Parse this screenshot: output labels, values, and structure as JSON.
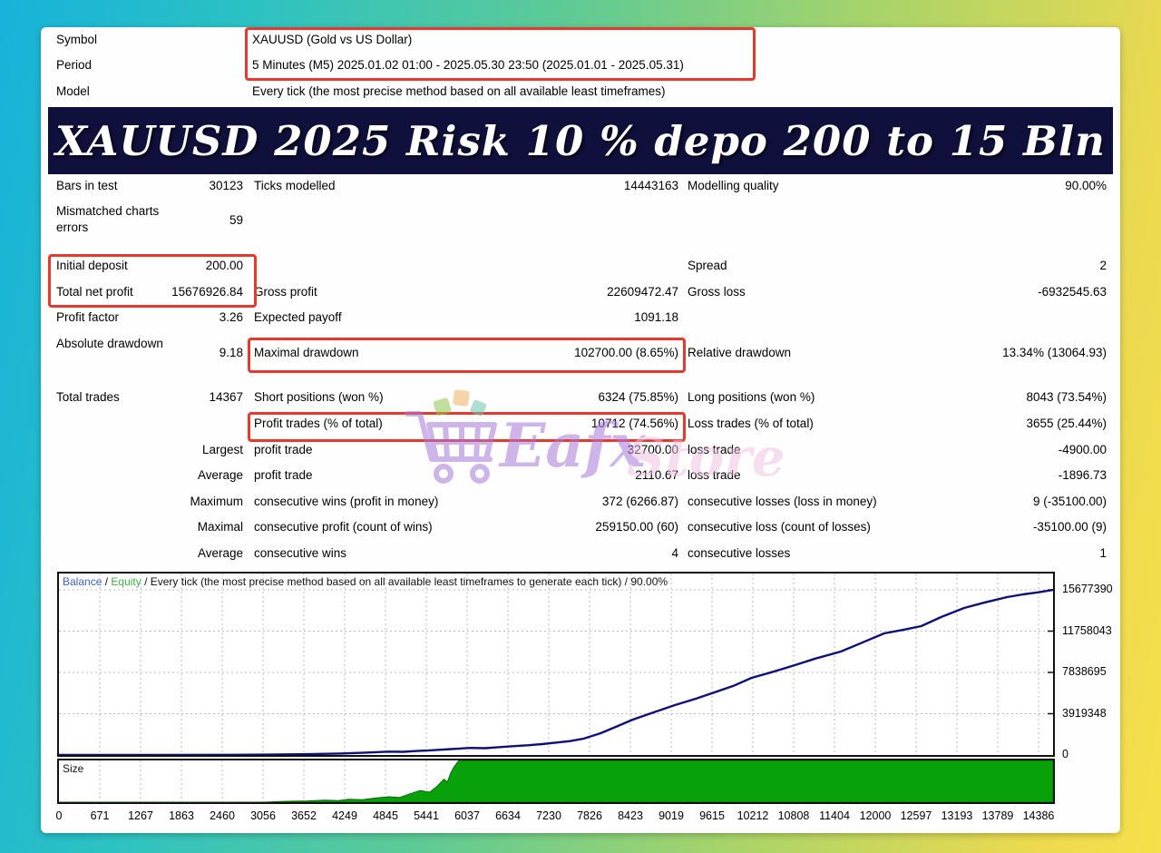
{
  "header": {
    "rows": [
      {
        "label": "Symbol",
        "value": "XAUUSD (Gold vs US Dollar)"
      },
      {
        "label": "Period",
        "value": "5 Minutes (M5) 2025.01.02 01:00 - 2025.05.30 23:50 (2025.01.01 - 2025.05.31)"
      },
      {
        "label": "Model",
        "value": "Every tick (the most precise method based on all available least timeframes)"
      }
    ]
  },
  "banner": {
    "title": "XAUUSD 2025 Risk 10 % depo 200 to 15 Bln",
    "bg": "#10103c",
    "fg": "#ffffff"
  },
  "stats": {
    "rows": [
      {
        "c1l": "Bars in test",
        "c1v": "30123",
        "c2l": "Ticks modelled",
        "c2v": "14443163",
        "c3l": "Modelling quality",
        "c3v": "90.00%"
      },
      {
        "c1l": "Mismatched charts errors",
        "c1v": "59"
      },
      {
        "c1l": "Initial deposit",
        "c1v": "200.00",
        "c3l": "Spread",
        "c3v": "2"
      },
      {
        "c1l": "Total net profit",
        "c1v": "15676926.84",
        "c2l": "Gross profit",
        "c2v": "22609472.47",
        "c3l": "Gross loss",
        "c3v": "-6932545.63"
      },
      {
        "c1l": "Profit factor",
        "c1v": "3.26",
        "c2l": "Expected payoff",
        "c2v": "1091.18"
      },
      {
        "c1l": "Absolute drawdown",
        "c1v": "9.18",
        "c2l": "Maximal drawdown",
        "c2v": "102700.00 (8.65%)",
        "c3l": "Relative drawdown",
        "c3v": "13.34% (13064.93)"
      },
      {
        "c1l": "Total trades",
        "c1v": "14367",
        "c2l": "Short positions (won %)",
        "c2v": "6324 (75.85%)",
        "c3l": "Long positions (won %)",
        "c3v": "8043 (73.54%)"
      },
      {
        "c2l": "Profit trades (% of total)",
        "c2v": "10712 (74.56%)",
        "c3l": "Loss trades (% of total)",
        "c3v": "3655 (25.44%)"
      },
      {
        "c1v": "Largest",
        "c2l": "profit trade",
        "c2v": "32700.00",
        "c3l": "loss trade",
        "c3v": "-4900.00"
      },
      {
        "c1v": "Average",
        "c2l": "profit trade",
        "c2v": "2110.67",
        "c3l": "loss trade",
        "c3v": "-1896.73"
      },
      {
        "c1v": "Maximum",
        "c2l": "consecutive wins (profit in money)",
        "c2v": "372 (6266.87)",
        "c3l": "consecutive losses (loss in money)",
        "c3v": "9 (-35100.00)"
      },
      {
        "c1v": "Maximal",
        "c2l": "consecutive profit (count of wins)",
        "c2v": "259150.00 (60)",
        "c3l": "consecutive loss (count of losses)",
        "c3v": "-35100.00 (9)"
      },
      {
        "c1v": "Average",
        "c2l": "consecutive wins",
        "c2v": "4",
        "c3l": "consecutive losses",
        "c3v": "1"
      }
    ]
  },
  "watermark": {
    "brand_first": "Eafx",
    "brand_second": "Store",
    "cart_color": "#a678d8",
    "first_color": "#a678d8",
    "second_color": "#f0bfe2"
  },
  "chart_data": [
    {
      "type": "line",
      "title": "Balance curve",
      "legend": {
        "balance": "Balance",
        "sep1": " / ",
        "equity": "Equity",
        "rest": " / Every tick (the most precise method based on all available least timeframes to generate each tick) / 90.00%"
      },
      "x_ticks": [
        "0",
        "671",
        "1267",
        "1863",
        "2460",
        "3056",
        "3652",
        "4249",
        "4845",
        "5441",
        "6037",
        "6634",
        "7230",
        "7826",
        "8423",
        "9019",
        "9615",
        "10212",
        "10808",
        "11404",
        "12000",
        "12597",
        "13193",
        "13789",
        "14386"
      ],
      "y_ticks": [
        15677390,
        11758043,
        7838695,
        3919348,
        0
      ],
      "xlim": [
        0,
        14590
      ],
      "ylim": [
        0,
        17228400
      ],
      "line_color": "#0f0f78",
      "grid": "dashed",
      "series": [
        {
          "name": "Balance",
          "points": [
            [
              0,
              200
            ],
            [
              1500,
              3000
            ],
            [
              2500,
              15000
            ],
            [
              3056,
              35000
            ],
            [
              3652,
              75000
            ],
            [
              4100,
              140000
            ],
            [
              4249,
              160000
            ],
            [
              4450,
              210000
            ],
            [
              4600,
              250000
            ],
            [
              4845,
              320000
            ],
            [
              5050,
              300000
            ],
            [
              5250,
              380000
            ],
            [
              5441,
              440000
            ],
            [
              5600,
              500000
            ],
            [
              5750,
              560000
            ],
            [
              6037,
              670000
            ],
            [
              6250,
              650000
            ],
            [
              6450,
              740000
            ],
            [
              6634,
              830000
            ],
            [
              6900,
              930000
            ],
            [
              7090,
              1030000
            ],
            [
              7300,
              1180000
            ],
            [
              7500,
              1320000
            ],
            [
              7700,
              1550000
            ],
            [
              7950,
              2070000
            ],
            [
              8200,
              2750000
            ],
            [
              8423,
              3360000
            ],
            [
              8700,
              3980000
            ],
            [
              9040,
              4740000
            ],
            [
              9350,
              5350000
            ],
            [
              9620,
              5940000
            ],
            [
              9900,
              6560000
            ],
            [
              10165,
              7320000
            ],
            [
              10480,
              7900000
            ],
            [
              10800,
              8530000
            ],
            [
              11100,
              9150000
            ],
            [
              11475,
              9820000
            ],
            [
              11800,
              10700000
            ],
            [
              12110,
              11540000
            ],
            [
              12400,
              11900000
            ],
            [
              12655,
              12230000
            ],
            [
              12950,
              13100000
            ],
            [
              13290,
              13960000
            ],
            [
              13600,
              14500000
            ],
            [
              13915,
              14990000
            ],
            [
              14150,
              15250000
            ],
            [
              14386,
              15450000
            ],
            [
              14590,
              15677390
            ]
          ]
        }
      ]
    },
    {
      "type": "area",
      "title": "Size",
      "label": "Size",
      "fill_color": "#09a109",
      "xlim": [
        0,
        14590
      ],
      "ylim": [
        0,
        1
      ],
      "points": [
        [
          0,
          0
        ],
        [
          3000,
          0
        ],
        [
          3300,
          0.02
        ],
        [
          3652,
          0.03
        ],
        [
          3900,
          0.05
        ],
        [
          4100,
          0.04
        ],
        [
          4249,
          0.07
        ],
        [
          4450,
          0.06
        ],
        [
          4650,
          0.1
        ],
        [
          4845,
          0.13
        ],
        [
          5000,
          0.11
        ],
        [
          5150,
          0.2
        ],
        [
          5300,
          0.28
        ],
        [
          5441,
          0.24
        ],
        [
          5550,
          0.38
        ],
        [
          5650,
          0.55
        ],
        [
          5700,
          0.48
        ],
        [
          5750,
          0.7
        ],
        [
          5800,
          0.85
        ],
        [
          5870,
          1
        ],
        [
          14590,
          1
        ]
      ]
    }
  ]
}
